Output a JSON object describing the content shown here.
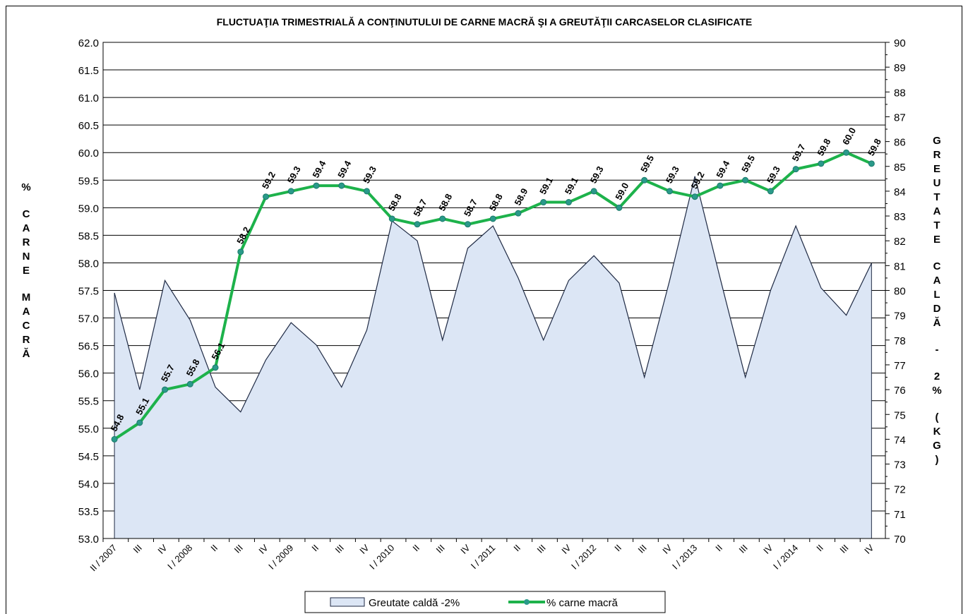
{
  "chart_data": {
    "type": "line",
    "title": "FLUCTUAŢIA TRIMESTRIALĂ  A CONŢINUTULUI DE CARNE MACRĂ ŞI A GREUTĂŢII CARCASELOR CLASIFICATE",
    "y_label": "% CARNE MACRĂ",
    "y2_label": "GREUTATE CALDĂ - 2% (KG)",
    "categories": [
      "II / 2007",
      "III",
      "IV",
      "I / 2008",
      "II",
      "III",
      "IV",
      "I / 2009",
      "II",
      "III",
      "IV",
      "I / 2010",
      "II",
      "III",
      "IV",
      "I / 2011",
      "II",
      "III",
      "IV",
      "I / 2012",
      "II",
      "III",
      "IV",
      "I / 2013",
      "II",
      "III",
      "IV",
      "I / 2014",
      "II",
      "III",
      "IV"
    ],
    "series": [
      {
        "name": "Greutate caldă -2%",
        "type": "area",
        "axis": "y2",
        "color": "#dce6f5",
        "line_color": "#1f2a44",
        "values": [
          79.9,
          76.0,
          80.4,
          78.8,
          76.1,
          75.1,
          77.2,
          78.7,
          77.8,
          76.1,
          78.4,
          82.8,
          82.0,
          78.0,
          81.7,
          82.6,
          80.5,
          78.0,
          80.4,
          81.4,
          80.3,
          76.5,
          80.4,
          84.6,
          80.5,
          76.5,
          80.0,
          82.6,
          80.1,
          79.0,
          81.1
        ]
      },
      {
        "name": "% carne macră",
        "type": "line",
        "axis": "y",
        "color": "#1db24b",
        "values": [
          54.8,
          55.1,
          55.7,
          55.8,
          56.1,
          58.2,
          59.2,
          59.3,
          59.4,
          59.4,
          59.3,
          58.8,
          58.7,
          58.8,
          58.7,
          58.8,
          58.9,
          59.1,
          59.1,
          59.3,
          59.0,
          59.5,
          59.3,
          59.2,
          59.4,
          59.5,
          59.3,
          59.7,
          59.8,
          60.0,
          59.8
        ],
        "value_labels": [
          "54.8",
          "55.1",
          "55.7",
          "55.8",
          "56.1",
          "58.2",
          "59.2",
          "59.3",
          "59.4",
          "59.4",
          "59.3",
          "58.8",
          "58.7",
          "58.8",
          "58.7",
          "58.8",
          "58.9",
          "59.1",
          "59.1",
          "59.3",
          "59.0",
          "59.5",
          "59.3",
          "59.2",
          "59.4",
          "59.5",
          "59.3",
          "59.7",
          "59.8",
          "60.0",
          "59.8"
        ]
      }
    ],
    "ylim": [
      53,
      62
    ],
    "yticks": [
      {
        "value": 53,
        "label": "53.0"
      },
      53.5,
      {
        "value": 54,
        "label": "54.0"
      },
      54.5,
      {
        "value": 55,
        "label": "55.0"
      },
      55.5,
      {
        "value": 56,
        "label": "56.0"
      },
      56.5,
      {
        "value": 57,
        "label": "57.0"
      },
      57.5,
      {
        "value": 58,
        "label": "58.0"
      },
      58.5,
      {
        "value": 59,
        "label": "59.0"
      },
      59.5,
      {
        "value": 60,
        "label": "60.0"
      },
      60.5,
      {
        "value": 61,
        "label": "61.0"
      },
      61.5,
      {
        "value": 62,
        "label": "62.0"
      }
    ],
    "y2lim": [
      70,
      90
    ],
    "y2ticks": [
      70,
      71,
      72,
      73,
      74,
      75,
      76,
      77,
      78,
      79,
      80,
      81,
      82,
      83,
      84,
      85,
      86,
      87,
      88,
      89,
      90
    ],
    "grid": true,
    "legend": "bottom"
  }
}
